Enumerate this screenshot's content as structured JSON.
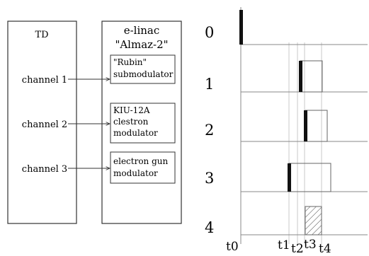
{
  "left_diagram": {
    "td_title": "TD",
    "td_channels": [
      "channel 1",
      "channel 2",
      "channel 3"
    ],
    "linac_title": [
      "e-linac",
      "\"Almaz-2\""
    ],
    "modules": [
      [
        "\"Rubin\"",
        "submodulator"
      ],
      [
        "KIU-12A",
        "clestron",
        "modulator"
      ],
      [
        "electron gun",
        "modulator"
      ]
    ]
  },
  "timing_diagram": {
    "row_labels": [
      "0",
      "1",
      "2",
      "3",
      "4"
    ],
    "time_labels": [
      "t0",
      "t1",
      "t2",
      "t3",
      "t4"
    ]
  }
}
